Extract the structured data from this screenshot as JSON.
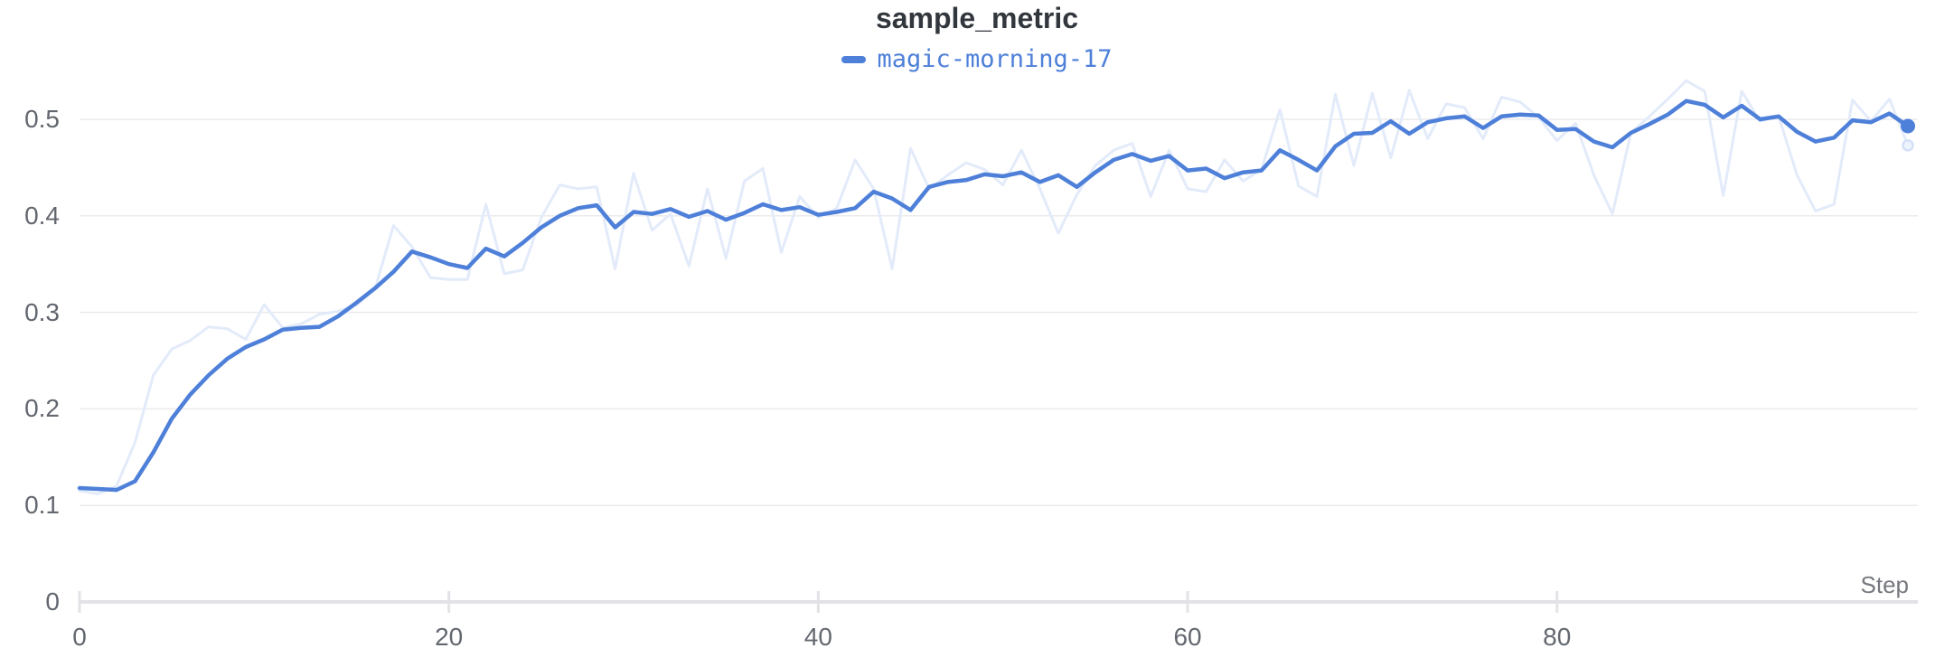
{
  "panel": {
    "title": "sample_metric",
    "legend": {
      "swatch_color": "#4e80d9",
      "label": "magic-morning-17"
    }
  },
  "axes": {
    "x_label": "Step",
    "x_tick_labels": [
      "0",
      "20",
      "40",
      "60",
      "80"
    ],
    "y_tick_labels": [
      "0",
      "0.1",
      "0.2",
      "0.3",
      "0.4",
      "0.5"
    ]
  },
  "colors": {
    "smoothed_line": "#4e80d9",
    "original_line": "#e3ebfa",
    "original_end_marker_fill": "#eef4fc",
    "original_end_marker_stroke": "#d3e0f6",
    "title_text": "#32363d",
    "tick_text": "#63676f",
    "axis_label_text": "#75787e",
    "gridline": "#ebebee",
    "axis_line": "#e3e3e7",
    "background": "#ffffff"
  },
  "chart_data": {
    "type": "line",
    "title": "sample_metric",
    "xlabel": "Step",
    "ylabel": "",
    "legend_position": "top-center",
    "grid": "horizontal-only",
    "x": {
      "start": 0,
      "step": 1,
      "count": 100
    },
    "xlim": [
      0,
      99
    ],
    "ylim": [
      0,
      0.55
    ],
    "xticks": [
      0,
      20,
      40,
      60,
      80
    ],
    "yticks": [
      0,
      0.1,
      0.2,
      0.3,
      0.4,
      0.5
    ],
    "series": [
      {
        "name": "magic-morning-17 (original, unsmoothed)",
        "color": "#e3ebfa",
        "style": "faint",
        "values": [
          0.115,
          0.112,
          0.12,
          0.165,
          0.235,
          0.262,
          0.271,
          0.285,
          0.283,
          0.272,
          0.308,
          0.284,
          0.288,
          0.298,
          0.301,
          0.308,
          0.324,
          0.39,
          0.368,
          0.336,
          0.334,
          0.334,
          0.412,
          0.34,
          0.344,
          0.398,
          0.432,
          0.428,
          0.43,
          0.345,
          0.444,
          0.385,
          0.402,
          0.348,
          0.428,
          0.356,
          0.436,
          0.449,
          0.362,
          0.42,
          0.398,
          0.408,
          0.458,
          0.428,
          0.345,
          0.47,
          0.428,
          0.442,
          0.455,
          0.448,
          0.432,
          0.468,
          0.428,
          0.382,
          0.422,
          0.452,
          0.468,
          0.475,
          0.42,
          0.468,
          0.428,
          0.425,
          0.458,
          0.436,
          0.448,
          0.51,
          0.431,
          0.42,
          0.526,
          0.452,
          0.527,
          0.46,
          0.53,
          0.48,
          0.516,
          0.512,
          0.48,
          0.523,
          0.518,
          0.502,
          0.478,
          0.496,
          0.442,
          0.402,
          0.486,
          0.503,
          0.521,
          0.54,
          0.529,
          0.421,
          0.529,
          0.498,
          0.503,
          0.442,
          0.405,
          0.412,
          0.52,
          0.498,
          0.521,
          0.473
        ]
      },
      {
        "name": "magic-morning-17",
        "color": "#4e80d9",
        "style": "solid",
        "values": [
          0.118,
          0.117,
          0.116,
          0.125,
          0.155,
          0.19,
          0.215,
          0.235,
          0.252,
          0.264,
          0.272,
          0.282,
          0.284,
          0.285,
          0.296,
          0.31,
          0.325,
          0.342,
          0.363,
          0.357,
          0.35,
          0.346,
          0.366,
          0.358,
          0.372,
          0.388,
          0.4,
          0.408,
          0.411,
          0.388,
          0.404,
          0.402,
          0.407,
          0.399,
          0.405,
          0.396,
          0.403,
          0.412,
          0.406,
          0.409,
          0.401,
          0.404,
          0.408,
          0.425,
          0.418,
          0.406,
          0.43,
          0.435,
          0.437,
          0.443,
          0.441,
          0.445,
          0.435,
          0.442,
          0.43,
          0.445,
          0.458,
          0.464,
          0.457,
          0.462,
          0.447,
          0.449,
          0.439,
          0.445,
          0.447,
          0.468,
          0.458,
          0.447,
          0.472,
          0.485,
          0.486,
          0.498,
          0.485,
          0.497,
          0.501,
          0.503,
          0.491,
          0.503,
          0.505,
          0.504,
          0.489,
          0.49,
          0.477,
          0.471,
          0.486,
          0.495,
          0.505,
          0.519,
          0.515,
          0.502,
          0.514,
          0.5,
          0.503,
          0.487,
          0.477,
          0.481,
          0.499,
          0.497,
          0.506,
          0.493
        ]
      }
    ],
    "end_markers": [
      {
        "series": "magic-morning-17",
        "x": 99,
        "y": 0.493
      },
      {
        "series": "magic-morning-17 (original, unsmoothed)",
        "x": 99,
        "y": 0.473
      }
    ]
  }
}
